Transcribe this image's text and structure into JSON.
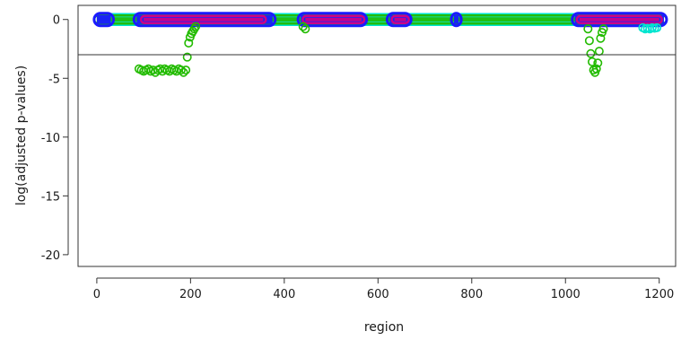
{
  "chart_data": {
    "type": "scatter",
    "title": "",
    "xlabel": "region",
    "ylabel": "log(adjusted p-values)",
    "xlim": [
      -40,
      1235
    ],
    "ylim": [
      -21,
      1.2
    ],
    "xticks": [
      0,
      200,
      400,
      600,
      800,
      1000,
      1200
    ],
    "yticks": [
      0,
      -5,
      -10,
      -15,
      -20
    ],
    "xtick_labels": [
      "0",
      "200",
      "400",
      "600",
      "800",
      "1000",
      "1200"
    ],
    "ytick_labels": [
      "0",
      "-5",
      "-10",
      "-15",
      "-20"
    ],
    "grid": false,
    "legend": "none",
    "hline": -3,
    "baseline_segments": [
      {
        "color": "#00e5d0",
        "ranges": [
          [
            0,
            1210
          ]
        ]
      },
      {
        "color": "#22bb00",
        "ranges": [
          [
            0,
            1210
          ]
        ]
      },
      {
        "color": "#1a1aff",
        "ranges": [
          [
            0,
            30
          ],
          [
            85,
            375
          ],
          [
            435,
            570
          ],
          [
            625,
            665
          ],
          [
            762,
            772
          ],
          [
            1020,
            1210
          ]
        ]
      },
      {
        "color": "#cc0088",
        "ranges": [
          [
            100,
            355
          ],
          [
            445,
            565
          ],
          [
            635,
            660
          ],
          [
            1030,
            1200
          ]
        ]
      }
    ],
    "series": [
      {
        "color": "#22bb00",
        "x": [
          90,
          95,
          100,
          105,
          110,
          115,
          120,
          125,
          130,
          135,
          140,
          145,
          150,
          155,
          160,
          165,
          170,
          175,
          180,
          185,
          190,
          193,
          196,
          199,
          202,
          205,
          208,
          211,
          440,
          445,
          1048,
          1051,
          1054,
          1057,
          1060,
          1063,
          1066,
          1069,
          1072,
          1075,
          1078,
          1081
        ],
        "y": [
          -4.2,
          -4.3,
          -4.4,
          -4.3,
          -4.2,
          -4.4,
          -4.3,
          -4.5,
          -4.3,
          -4.2,
          -4.4,
          -4.2,
          -4.3,
          -4.4,
          -4.2,
          -4.3,
          -4.4,
          -4.2,
          -4.3,
          -4.5,
          -4.3,
          -3.2,
          -2.0,
          -1.5,
          -1.2,
          -1.0,
          -0.8,
          -0.6,
          -0.6,
          -0.8,
          -0.8,
          -1.8,
          -2.9,
          -3.6,
          -4.3,
          -4.5,
          -4.2,
          -3.7,
          -2.7,
          -1.6,
          -1.1,
          -0.8
        ]
      },
      {
        "color": "#00e5d0",
        "x": [
          1165,
          1170,
          1175,
          1180,
          1185,
          1190,
          1195
        ],
        "y": [
          -0.7,
          -0.8,
          -0.75,
          -0.8,
          -0.7,
          -0.75,
          -0.7
        ]
      }
    ]
  }
}
